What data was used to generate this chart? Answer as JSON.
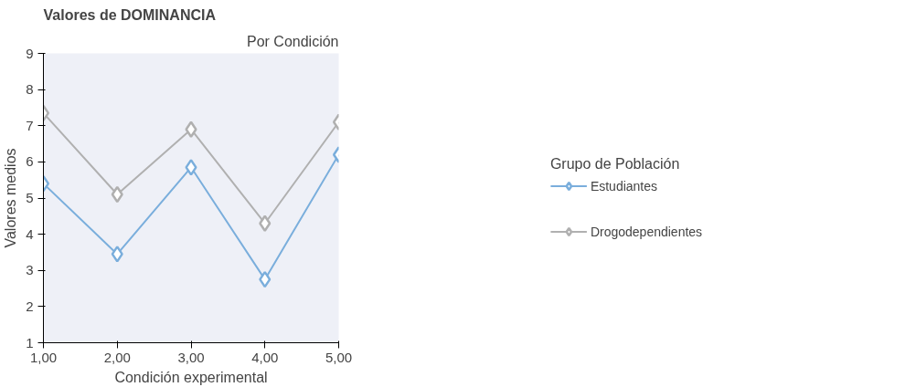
{
  "chart_data": {
    "type": "line",
    "title": "Valores de DOMINANCIA",
    "subtitle": "Por Condición",
    "xlabel": "Condición experimental",
    "ylabel": "Valores medios",
    "legend_title": "Grupo de Población",
    "x": [
      1,
      2,
      3,
      4,
      5
    ],
    "series": [
      {
        "name": "Estudiantes",
        "color": "#7aaedc",
        "values": [
          5.4,
          3.45,
          5.85,
          2.75,
          6.2
        ]
      },
      {
        "name": "Drogodependientes",
        "color": "#b0b0b0",
        "values": [
          7.35,
          5.1,
          6.9,
          4.3,
          7.1
        ]
      }
    ],
    "xlim": [
      1,
      5
    ],
    "ylim": [
      1,
      9
    ],
    "xticks": [
      {
        "value": 1,
        "label": "1,00"
      },
      {
        "value": 2,
        "label": "2,00"
      },
      {
        "value": 3,
        "label": "3,00"
      },
      {
        "value": 4,
        "label": "4,00"
      },
      {
        "value": 5,
        "label": "5,00"
      }
    ],
    "yticks": [
      1,
      2,
      3,
      4,
      5,
      6,
      7,
      8,
      9
    ],
    "grid": false,
    "legend": "right",
    "marker": "diamond",
    "line_style": "solid"
  }
}
